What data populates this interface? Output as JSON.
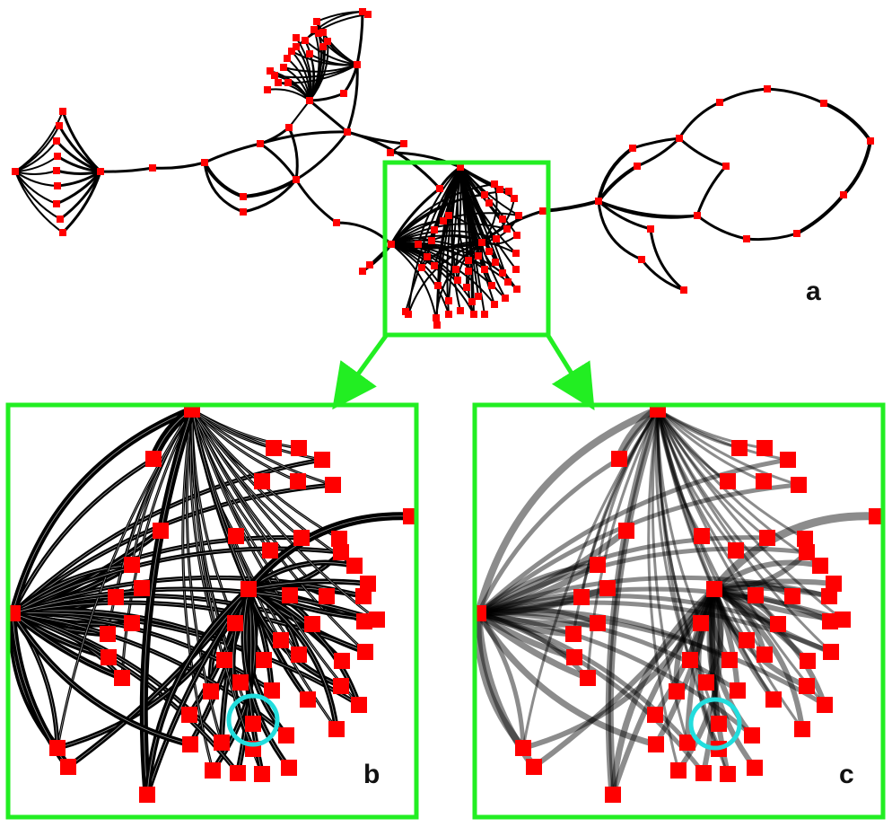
{
  "panels": {
    "a": {
      "label": "a"
    },
    "b": {
      "label": "b"
    },
    "c": {
      "label": "c"
    }
  },
  "colors": {
    "node": "#ff0000",
    "edge": "#000000",
    "edge_faded": "#7a7a7a",
    "frame": "#22ee22",
    "highlight": "#22dddd"
  }
}
